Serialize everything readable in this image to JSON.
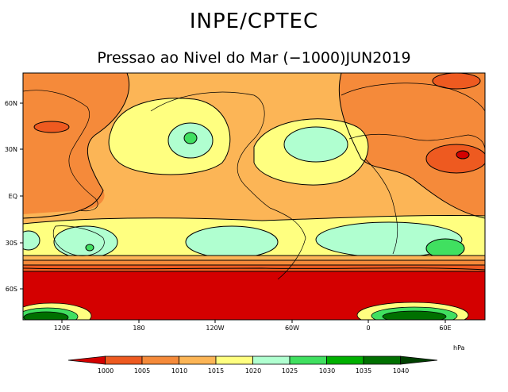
{
  "header": {
    "agency": "INPE/CPTEC",
    "subtitle": "Pressao ao Nivel do Mar (−1000)JUN2019"
  },
  "map": {
    "lat_ticks": [
      "60N",
      "30N",
      "EQ",
      "30S",
      "60S"
    ],
    "lon_ticks": [
      "120E",
      "180",
      "120W",
      "60W",
      "0",
      "60E"
    ]
  },
  "legend": {
    "unit": "hPa",
    "levels": [
      "1000",
      "1005",
      "1010",
      "1015",
      "1020",
      "1025",
      "1030",
      "1035",
      "1040"
    ],
    "colors": [
      "#d40000",
      "#ee5a20",
      "#f58a3a",
      "#fcb556",
      "#ffff80",
      "#b0ffd0",
      "#40e060",
      "#00b000",
      "#007000",
      "#004000"
    ]
  }
}
